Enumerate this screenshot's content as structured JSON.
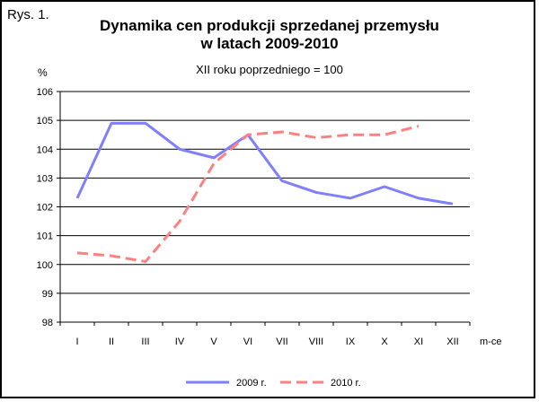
{
  "figure_label": "Rys. 1.",
  "chart_data": {
    "type": "line",
    "title_line1": "Dynamika cen produkcji sprzedanej przemysłu",
    "title_line2": "w latach 2009-2010",
    "subtitle": "XII roku poprzedniego = 100",
    "ylabel": "%",
    "xlabel": "m-ce",
    "ylim": [
      98,
      106
    ],
    "yticks": [
      98,
      99,
      100,
      101,
      102,
      103,
      104,
      105,
      106
    ],
    "grid": true,
    "legend_position": "bottom",
    "categories": [
      "I",
      "II",
      "III",
      "IV",
      "V",
      "VI",
      "VII",
      "VIII",
      "IX",
      "X",
      "XI",
      "XII"
    ],
    "series": [
      {
        "name": "2009 r.",
        "color": "#8080ff",
        "style": "solid",
        "values": [
          102.3,
          104.9,
          104.9,
          104.0,
          103.7,
          104.5,
          102.9,
          102.5,
          102.3,
          102.7,
          102.3,
          102.1
        ]
      },
      {
        "name": "2010 r.",
        "color": "#ff8080",
        "style": "dashed",
        "values": [
          100.4,
          100.3,
          100.1,
          101.5,
          103.5,
          104.5,
          104.6,
          104.4,
          104.5,
          104.5,
          104.8,
          null
        ]
      }
    ]
  }
}
